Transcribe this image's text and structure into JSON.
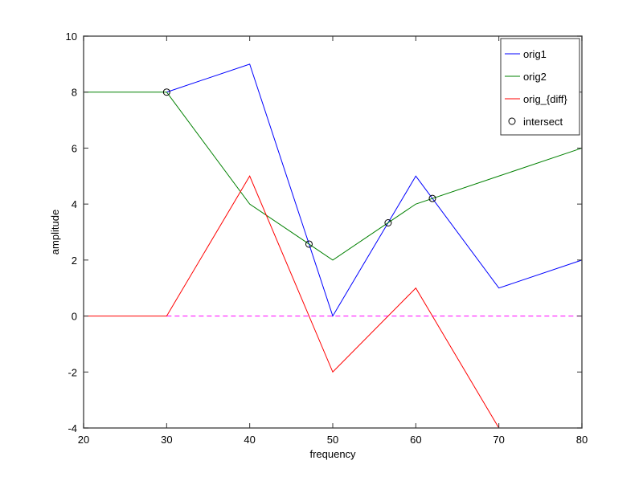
{
  "chart_data": {
    "type": "line",
    "title": "",
    "xlabel": "frequency",
    "ylabel": "amplitude",
    "xlim": [
      20,
      80
    ],
    "ylim": [
      -4,
      10
    ],
    "xticks": [
      20,
      30,
      40,
      50,
      60,
      70,
      80
    ],
    "yticks": [
      -4,
      -2,
      0,
      2,
      4,
      6,
      8,
      10
    ],
    "grid": false,
    "legend_position": "upper right",
    "series": [
      {
        "name": "orig1",
        "color": "#0000ff",
        "x": [
          30,
          40,
          50,
          60,
          70,
          80
        ],
        "y": [
          8,
          9,
          0,
          5,
          1,
          2
        ]
      },
      {
        "name": "orig2",
        "color": "#008000",
        "x": [
          20,
          30,
          40,
          50,
          60,
          70,
          80
        ],
        "y": [
          8,
          8,
          4,
          2,
          4,
          5,
          6
        ]
      },
      {
        "name": "orig_{diff}",
        "color": "#ff0000",
        "x": [
          20,
          30,
          40,
          50,
          60,
          70,
          80
        ],
        "y": [
          0,
          0,
          5,
          -2,
          1,
          -4,
          -4
        ]
      },
      {
        "name": "intersect",
        "color": "#000000",
        "marker": "o",
        "x": [
          30,
          47.14,
          56.67,
          62
        ],
        "y": [
          8,
          2.57,
          3.33,
          4.2
        ]
      }
    ],
    "reference_line": {
      "y": 0,
      "style": "dashed",
      "color": "#ff00ff",
      "x": [
        30,
        80
      ]
    }
  }
}
